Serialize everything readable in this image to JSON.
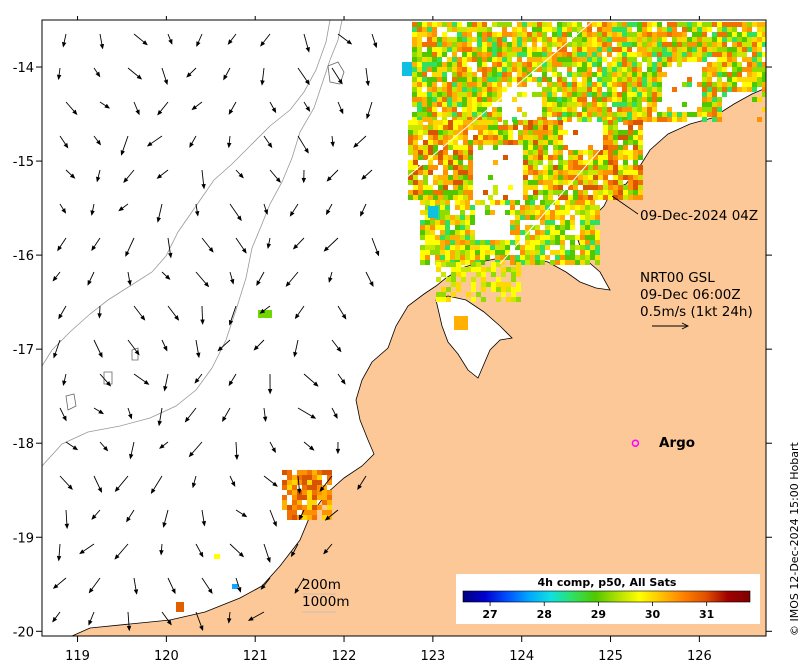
{
  "map": {
    "lon_ticks": [
      "119",
      "120",
      "121",
      "122",
      "123",
      "124",
      "125",
      "126"
    ],
    "lat_ticks": [
      "-14",
      "-15",
      "-16",
      "-17",
      "-18",
      "-19",
      "-20"
    ],
    "lon_range": [
      118.6,
      126.75
    ],
    "lat_range": [
      -20.05,
      -13.5
    ]
  },
  "annotations": {
    "pass_time": "09-Dec-2024 04Z",
    "current_source": "NRT00 GSL",
    "current_time": "09-Dec 06:00Z",
    "current_scale": "0.5m/s (1kt 24h)",
    "argo_label": "Argo",
    "contour_200": "200m",
    "contour_1000": "1000m",
    "credit": "© IMOS 12-Dec-2024 15:00 Hobart"
  },
  "colorbar": {
    "title": "4h comp, p50, All Sats",
    "ticks": [
      "27",
      "28",
      "29",
      "30",
      "31"
    ],
    "range": [
      26.5,
      31.8
    ],
    "colors": [
      "#00007f",
      "#0000d0",
      "#0050ff",
      "#00a8ff",
      "#10e0e0",
      "#30e060",
      "#50c800",
      "#b0e000",
      "#ffff00",
      "#ffc000",
      "#ff8000",
      "#e05000",
      "#a00000",
      "#7f0000"
    ]
  },
  "colors": {
    "land": "#fcc898",
    "coast": "#000000",
    "bathy": "#888888",
    "argo": "#ff00ff"
  },
  "argo": {
    "lon": 125.28,
    "lat": -18.0
  }
}
